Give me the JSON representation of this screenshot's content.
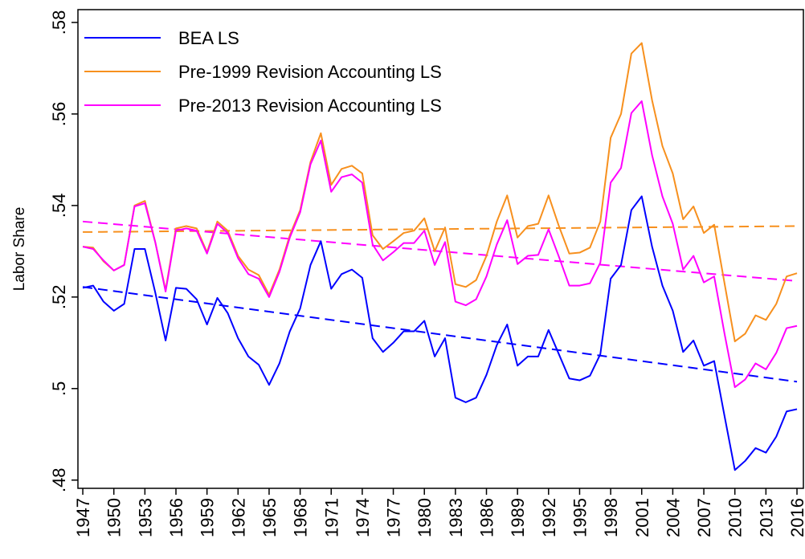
{
  "chart_data": {
    "type": "line",
    "y_label": "Labor Share",
    "x": [
      1947,
      1948,
      1949,
      1950,
      1951,
      1952,
      1953,
      1954,
      1955,
      1956,
      1957,
      1958,
      1959,
      1960,
      1961,
      1962,
      1963,
      1964,
      1965,
      1966,
      1967,
      1968,
      1969,
      1970,
      1971,
      1972,
      1973,
      1974,
      1975,
      1976,
      1977,
      1978,
      1979,
      1980,
      1981,
      1982,
      1983,
      1984,
      1985,
      1986,
      1987,
      1988,
      1989,
      1990,
      1991,
      1992,
      1993,
      1994,
      1995,
      1996,
      1997,
      1998,
      1999,
      2000,
      2001,
      2002,
      2003,
      2004,
      2005,
      2006,
      2007,
      2008,
      2009,
      2010,
      2011,
      2012,
      2013,
      2014,
      2015,
      2016
    ],
    "series": [
      {
        "name": "BEA LS",
        "color": "#0000ff",
        "values": [
          0.522,
          0.5225,
          0.519,
          0.517,
          0.5185,
          0.5305,
          0.5305,
          0.521,
          0.5105,
          0.522,
          0.5218,
          0.5195,
          0.514,
          0.5198,
          0.5165,
          0.511,
          0.507,
          0.5052,
          0.5008,
          0.5055,
          0.5125,
          0.5175,
          0.527,
          0.5322,
          0.5218,
          0.525,
          0.526,
          0.5242,
          0.511,
          0.508,
          0.51,
          0.5125,
          0.5125,
          0.5148,
          0.507,
          0.511,
          0.498,
          0.497,
          0.498,
          0.503,
          0.5095,
          0.514,
          0.505,
          0.507,
          0.507,
          0.5128,
          0.5075,
          0.5022,
          0.5018,
          0.5028,
          0.5075,
          0.524,
          0.527,
          0.539,
          0.542,
          0.531,
          0.5225,
          0.517,
          0.508,
          0.5105,
          0.505,
          0.506,
          0.494,
          0.4822,
          0.4842,
          0.487,
          0.486,
          0.4895,
          0.495,
          0.4955
        ]
      },
      {
        "name": "Pre-1999 Revision Accounting LS",
        "color": "#f7901e",
        "values": [
          0.531,
          0.5308,
          0.5278,
          0.5258,
          0.527,
          0.54,
          0.541,
          0.532,
          0.5215,
          0.535,
          0.5355,
          0.535,
          0.5298,
          0.5365,
          0.5345,
          0.529,
          0.526,
          0.5248,
          0.5205,
          0.526,
          0.5335,
          0.539,
          0.5495,
          0.5558,
          0.5445,
          0.548,
          0.5487,
          0.547,
          0.5335,
          0.5305,
          0.5322,
          0.534,
          0.5345,
          0.5372,
          0.53,
          0.5352,
          0.5228,
          0.5222,
          0.5237,
          0.529,
          0.5365,
          0.5422,
          0.533,
          0.5355,
          0.536,
          0.5422,
          0.5355,
          0.5295,
          0.5297,
          0.5308,
          0.5365,
          0.5548,
          0.56,
          0.5732,
          0.5755,
          0.563,
          0.553,
          0.547,
          0.537,
          0.5398,
          0.534,
          0.5358,
          0.523,
          0.5103,
          0.512,
          0.516,
          0.515,
          0.5185,
          0.5245,
          0.5252
        ]
      },
      {
        "name": "Pre-2013 Revision Accounting LS",
        "color": "#ff00ff",
        "values": [
          0.531,
          0.5305,
          0.528,
          0.5258,
          0.527,
          0.5398,
          0.5405,
          0.532,
          0.5212,
          0.5345,
          0.535,
          0.5345,
          0.5295,
          0.536,
          0.534,
          0.5285,
          0.525,
          0.524,
          0.52,
          0.5255,
          0.533,
          0.5385,
          0.549,
          0.5542,
          0.543,
          0.5462,
          0.5468,
          0.545,
          0.5315,
          0.528,
          0.5298,
          0.5318,
          0.5318,
          0.5345,
          0.527,
          0.532,
          0.519,
          0.5182,
          0.5195,
          0.5245,
          0.5315,
          0.5368,
          0.5272,
          0.529,
          0.5292,
          0.5348,
          0.5288,
          0.5225,
          0.5225,
          0.523,
          0.5275,
          0.545,
          0.5482,
          0.5602,
          0.5628,
          0.551,
          0.542,
          0.536,
          0.526,
          0.529,
          0.5232,
          0.5245,
          0.512,
          0.5003,
          0.502,
          0.5055,
          0.5042,
          0.5078,
          0.5132,
          0.5137
        ]
      }
    ],
    "trend_lines": [
      {
        "color": "#0000ff",
        "values": [
          0.5222,
          0.5015
        ]
      },
      {
        "color": "#f7901e",
        "values": [
          0.5342,
          0.5355
        ]
      },
      {
        "color": "#ff00ff",
        "values": [
          0.5365,
          0.5235
        ]
      }
    ],
    "xlim": [
      1946.53,
      2016.62
    ],
    "xticks": [
      1947,
      1950,
      1953,
      1956,
      1959,
      1962,
      1965,
      1968,
      1971,
      1974,
      1977,
      1980,
      1983,
      1986,
      1989,
      1992,
      1995,
      1998,
      2001,
      2004,
      2007,
      2010,
      2013,
      2016
    ],
    "ylim": [
      0.4782,
      0.5828
    ],
    "yticks": [
      {
        "value": 0.48,
        "label": ".48"
      },
      {
        "value": 0.5,
        "label": ".5"
      },
      {
        "value": 0.52,
        "label": ".52"
      },
      {
        "value": 0.54,
        "label": ".54"
      },
      {
        "value": 0.56,
        "label": ".56"
      },
      {
        "value": 0.58,
        "label": ".58"
      }
    ],
    "legend": "top-left"
  }
}
